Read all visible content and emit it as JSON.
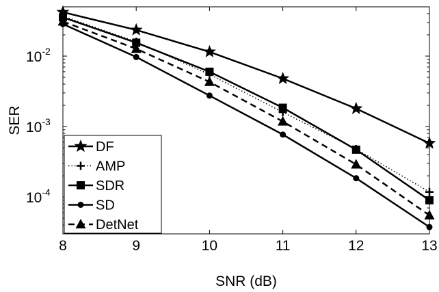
{
  "chart_data": {
    "type": "line",
    "title": "",
    "xlabel": "SNR (dB)",
    "ylabel": "SER",
    "yscale": "log",
    "xlim": [
      8,
      13
    ],
    "ylim": [
      3e-05,
      0.05
    ],
    "x": [
      8,
      9,
      10,
      11,
      12,
      13
    ],
    "x_tick_labels": [
      "8",
      "9",
      "10",
      "11",
      "12",
      "13"
    ],
    "y_tick_labels": [
      {
        "value": 0.01,
        "base": "10",
        "exp": "-2"
      },
      {
        "value": 0.001,
        "base": "10",
        "exp": "-3"
      },
      {
        "value": 0.0001,
        "base": "10",
        "exp": "-4"
      }
    ],
    "grid": false,
    "legend_position": "bottom-left",
    "series": [
      {
        "name": "DF",
        "marker": "star",
        "line": "solid",
        "values": [
          0.042,
          0.0235,
          0.0115,
          0.0048,
          0.0018,
          0.00058
        ]
      },
      {
        "name": "AMP",
        "marker": "plus",
        "line": "dotted",
        "values": [
          0.037,
          0.016,
          0.0055,
          0.0016,
          0.00048,
          0.000118
        ]
      },
      {
        "name": "SDR",
        "marker": "square",
        "line": "solid",
        "values": [
          0.0355,
          0.0155,
          0.006,
          0.00185,
          0.00047,
          9e-05
        ]
      },
      {
        "name": "SD",
        "marker": "circle",
        "line": "solid",
        "values": [
          0.0285,
          0.0097,
          0.00275,
          0.00077,
          0.000185,
          3.75e-05
        ]
      },
      {
        "name": "DetNet",
        "marker": "triangle",
        "line": "dashed",
        "values": [
          0.031,
          0.0127,
          0.0043,
          0.00118,
          0.00029,
          5.5e-05
        ]
      }
    ]
  }
}
